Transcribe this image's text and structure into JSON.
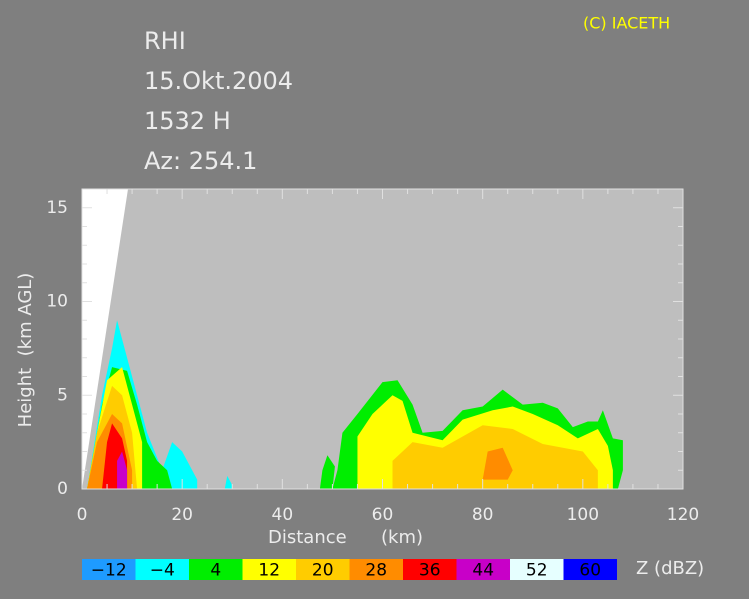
{
  "chart_data": {
    "type": "rhi",
    "annotations": [
      "RHI",
      "15.Okt.2004",
      "1532 H",
      "Az: 254.1"
    ],
    "credit": "(C) IACETH",
    "x_label": "Distance      (km)",
    "y_label": "Height  (km AGL)",
    "colorbar_label": "Z (dBZ)",
    "xlim": [
      0,
      120
    ],
    "xticks": [
      0,
      20,
      40,
      60,
      80,
      100,
      120
    ],
    "ylim": [
      0,
      16
    ],
    "yticks": [
      0,
      5,
      10,
      15
    ],
    "levels": [
      {
        "value": -12,
        "label": "−12"
      },
      {
        "value": -4,
        "label": "−4"
      },
      4,
      12,
      20,
      28,
      36,
      44,
      52,
      60
    ],
    "colors": [
      "#1e9bff",
      "#00ffff",
      "#00ee00",
      "#ffff00",
      "#ffcc00",
      "#ff8c00",
      "#ff0000",
      "#c800c8",
      "#e6ffff",
      "#0000ff"
    ],
    "regions": [
      {
        "dbz": -4,
        "distance": [
          1,
          4,
          6,
          7,
          9,
          11,
          13,
          16,
          18,
          20,
          23,
          23
        ],
        "height": [
          0,
          5,
          7.5,
          9,
          7,
          5,
          3,
          1,
          2.5,
          2,
          0.5,
          0
        ]
      },
      {
        "dbz": -4,
        "distance": [
          28.5,
          29,
          30,
          30
        ],
        "height": [
          0,
          0.7,
          0.2,
          0
        ]
      },
      {
        "dbz": 4,
        "distance": [
          1,
          4,
          6,
          9,
          11,
          13,
          15,
          17,
          18
        ],
        "height": [
          0,
          4.5,
          6.5,
          6.3,
          4.5,
          2.5,
          1.5,
          1,
          0
        ]
      },
      {
        "dbz": 4,
        "distance": [
          47.5,
          48,
          49,
          50.5,
          50
        ],
        "height": [
          0,
          1,
          1.8,
          1.2,
          0
        ]
      },
      {
        "dbz": 4,
        "distance": [
          50,
          51,
          52,
          55,
          60,
          63,
          66,
          68,
          72,
          76,
          80,
          84,
          88,
          92,
          95,
          98,
          101,
          103,
          104,
          106,
          108,
          108,
          107
        ],
        "height": [
          0,
          1,
          3,
          4,
          5.7,
          5.8,
          4.5,
          3,
          3.1,
          4.2,
          4.4,
          5.3,
          4.5,
          4.6,
          4.3,
          3.3,
          3.6,
          3.6,
          4.2,
          2.7,
          2.6,
          1,
          0
        ]
      },
      {
        "dbz": 12,
        "distance": [
          1,
          3,
          5,
          8,
          10,
          12,
          12
        ],
        "height": [
          0,
          3,
          5.8,
          6.5,
          4.5,
          2.5,
          0
        ]
      },
      {
        "dbz": 12,
        "distance": [
          55,
          55,
          58,
          62,
          64,
          66,
          72,
          76,
          82,
          86,
          90,
          95,
          99,
          103,
          105,
          106,
          106
        ],
        "height": [
          0,
          2.8,
          4,
          5,
          4.7,
          3,
          2.6,
          3.7,
          4.2,
          4.4,
          4,
          3.4,
          2.7,
          3.2,
          2.3,
          1,
          0
        ]
      },
      {
        "dbz": 20,
        "distance": [
          1,
          3,
          6,
          8,
          10,
          11
        ],
        "height": [
          0,
          3,
          5.5,
          5,
          3,
          0
        ]
      },
      {
        "dbz": 20,
        "distance": [
          62,
          62,
          66,
          72,
          80,
          86,
          92,
          100,
          103,
          103
        ],
        "height": [
          0,
          1.5,
          2.5,
          2.2,
          3.4,
          3.2,
          2.4,
          2,
          1,
          0
        ]
      },
      {
        "dbz": 28,
        "distance": [
          1,
          3,
          6,
          8,
          10,
          10
        ],
        "height": [
          0,
          2.5,
          4,
          3.5,
          1,
          0
        ]
      },
      {
        "dbz": 28,
        "distance": [
          80,
          81,
          84,
          86,
          85
        ],
        "height": [
          0.5,
          2,
          2.2,
          1,
          0.5
        ]
      },
      {
        "dbz": 36,
        "distance": [
          4,
          5,
          6,
          8,
          9,
          9
        ],
        "height": [
          0,
          2.5,
          3.5,
          2.7,
          1.5,
          0
        ]
      },
      {
        "dbz": 44,
        "distance": [
          7,
          7,
          8,
          9,
          9
        ],
        "height": [
          0,
          1.5,
          2,
          1,
          0
        ]
      }
    ]
  }
}
